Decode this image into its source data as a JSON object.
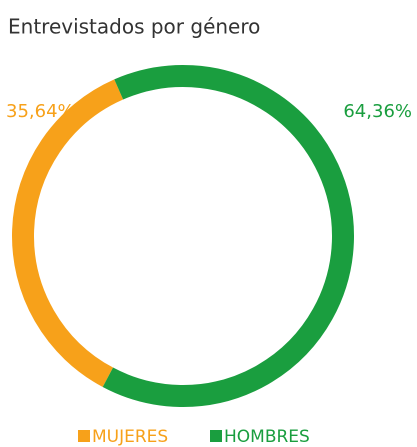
{
  "chart_data": {
    "type": "donut",
    "title": "Entrevistados por género",
    "categories": [
      "MUJERES",
      "HOMBRES"
    ],
    "values": [
      35.64,
      64.36
    ],
    "value_labels": [
      "35,64%",
      "64,36%"
    ],
    "colors": [
      "#f7a11a",
      "#1a9e3f"
    ],
    "legend": "bottom"
  }
}
